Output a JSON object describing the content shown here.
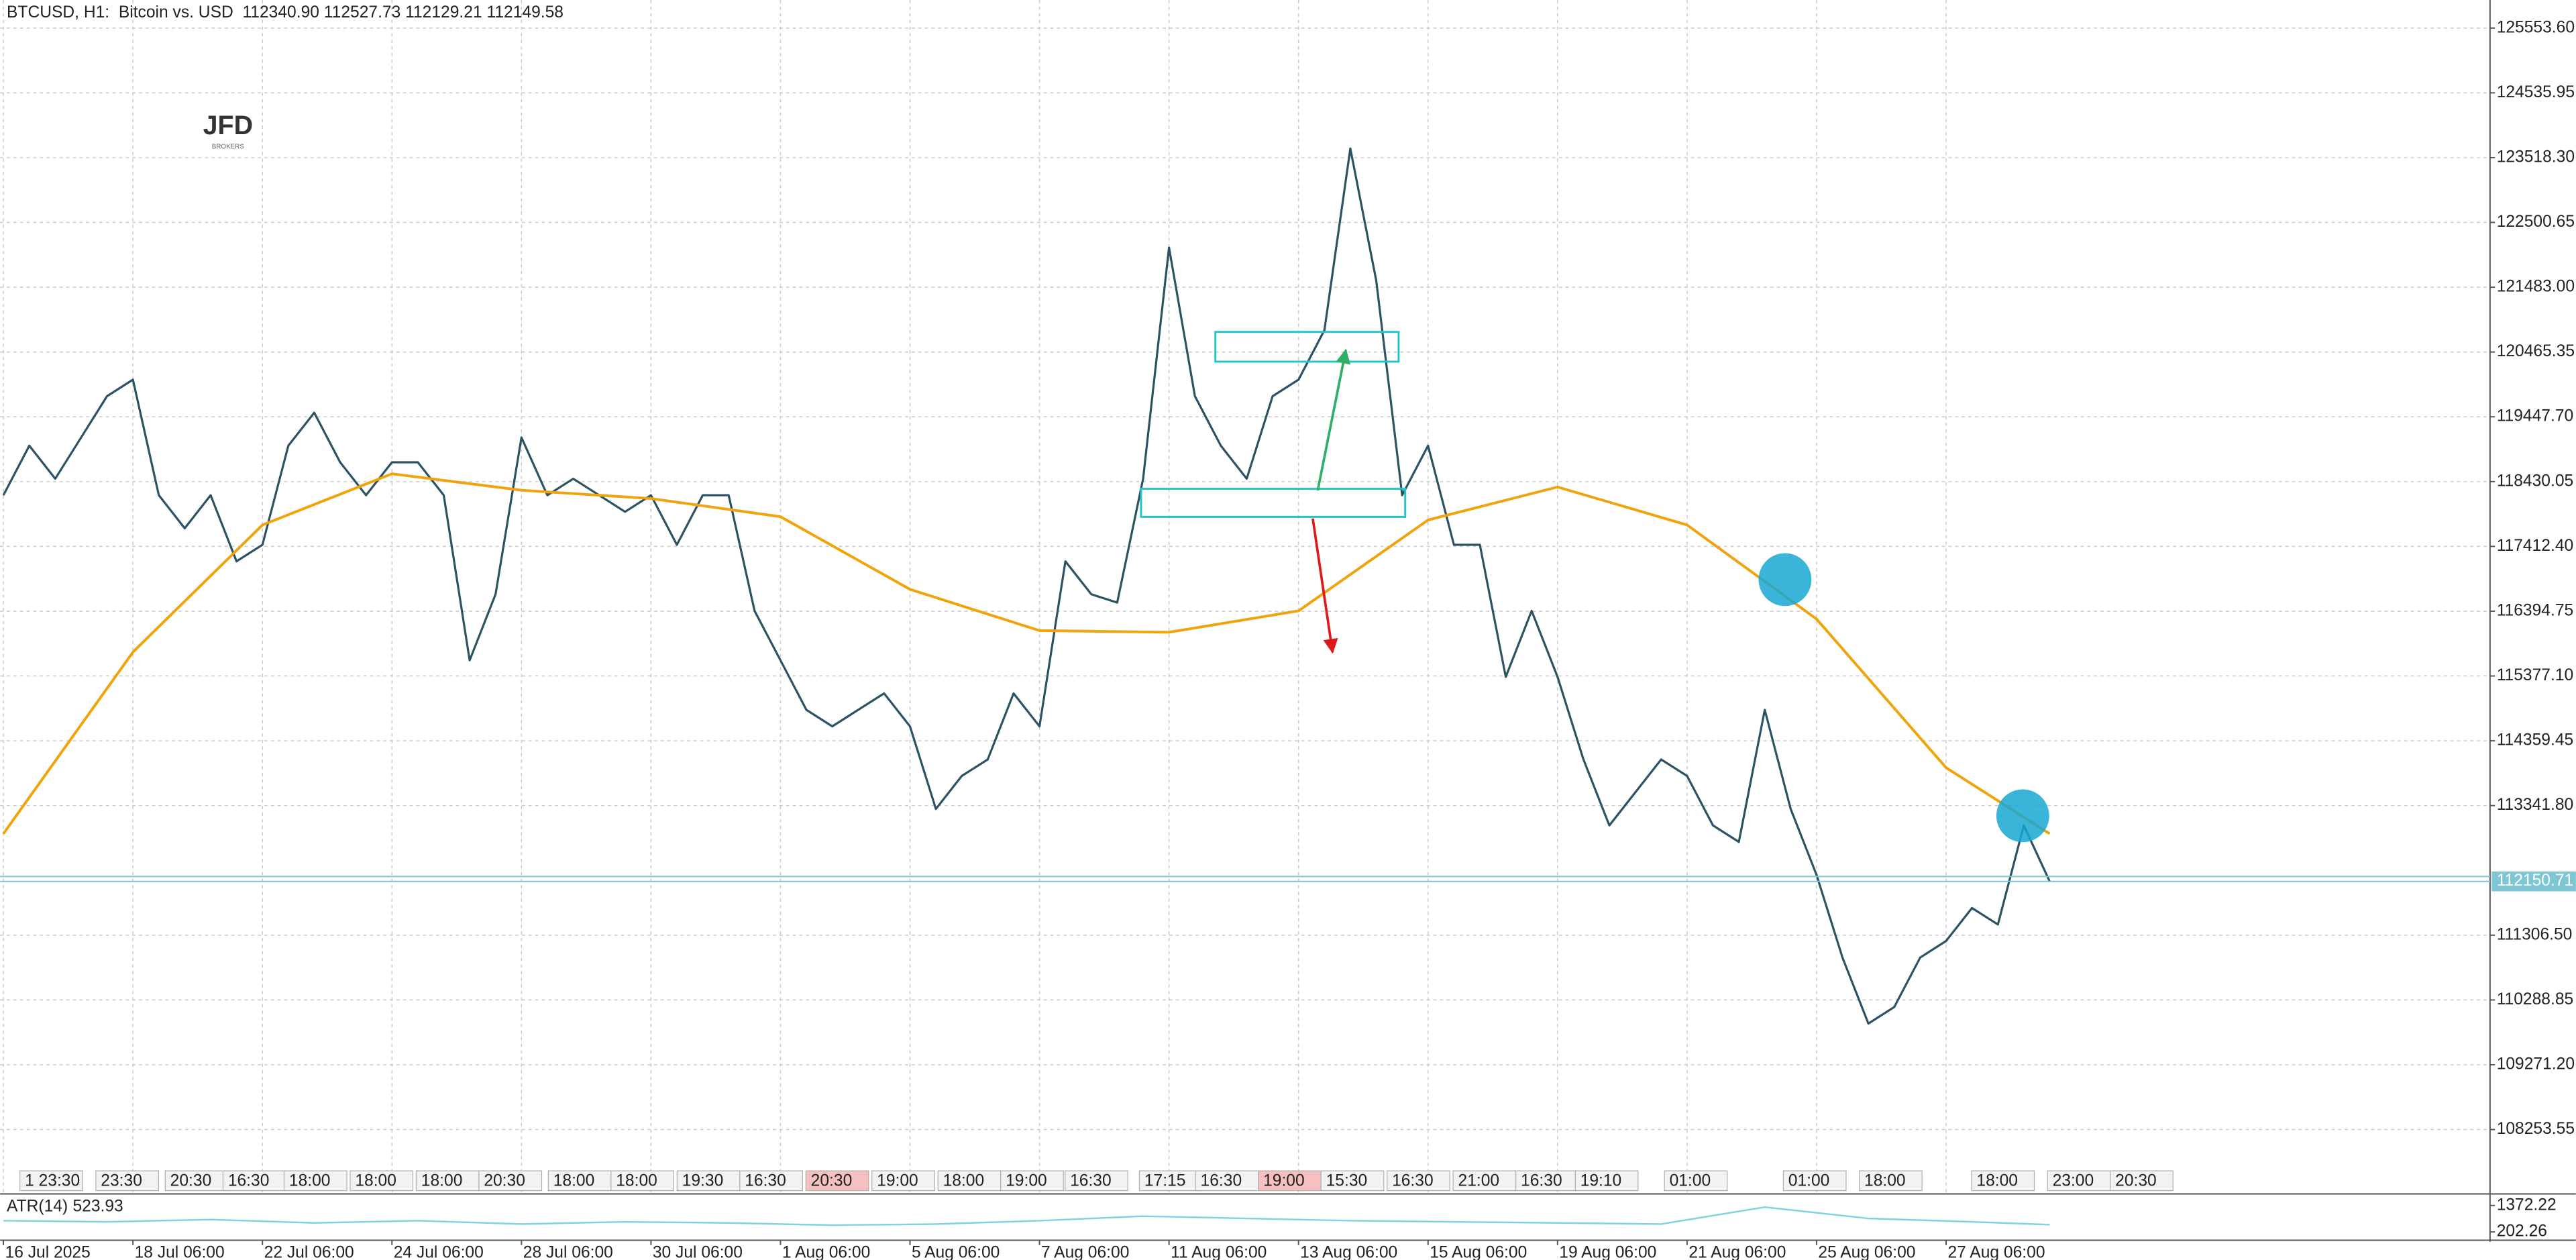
{
  "logo": {
    "name": "JFD",
    "tagline": "BROKERS"
  },
  "chart_data": [
    {
      "type": "line",
      "title": "BTCUSD, H1:  Bitcoin vs. USD  112340.90 112527.73 112129.21 112149.58",
      "xlim": [
        0,
        96
      ],
      "xticks": [
        {
          "value": 0,
          "label": "16 Jul 2025"
        },
        {
          "value": 5,
          "label": "18 Jul 06:00"
        },
        {
          "value": 10,
          "label": "22 Jul 06:00"
        },
        {
          "value": 15,
          "label": "24 Jul 06:00"
        },
        {
          "value": 20,
          "label": "28 Jul 06:00"
        },
        {
          "value": 25,
          "label": "30 Jul 06:00"
        },
        {
          "value": 30,
          "label": "1 Aug 06:00"
        },
        {
          "value": 35,
          "label": "5 Aug 06:00"
        },
        {
          "value": 40,
          "label": "7 Aug 06:00"
        },
        {
          "value": 45,
          "label": "11 Aug 06:00"
        },
        {
          "value": 50,
          "label": "13 Aug 06:00"
        },
        {
          "value": 55,
          "label": "15 Aug 06:00"
        },
        {
          "value": 60,
          "label": "19 Aug 06:00"
        },
        {
          "value": 65,
          "label": "21 Aug 06:00"
        },
        {
          "value": 70,
          "label": "25 Aug 06:00"
        },
        {
          "value": 75,
          "label": "27 Aug 06:00"
        }
      ],
      "ylim": [
        107268,
        125994
      ],
      "yticks": [
        {
          "value": 125553.6,
          "label": "125553.60"
        },
        124535.95,
        {
          "value": 123518.3,
          "label": "123518.30"
        },
        122500.65,
        {
          "value": 121483,
          "label": "121483.00"
        },
        120465.35,
        {
          "value": 119447.7,
          "label": "119447.70"
        },
        118430.05,
        {
          "value": 117412.4,
          "label": "117412.40"
        },
        116394.75,
        {
          "value": 115377.1,
          "label": "115377.10"
        },
        114359.45,
        {
          "value": 113341.8,
          "label": "113341.80"
        },
        {
          "value": 111306.5,
          "label": "111306.50"
        },
        110288.85,
        {
          "value": 109271.2,
          "label": "109271.20"
        },
        108253.55
      ],
      "grid": true,
      "current_price": 112150.71,
      "time_labels": [
        "1 23:30",
        "23:30",
        "20:30",
        "16:30",
        "18:00",
        "18:00",
        "18:00",
        "20:30",
        "18:00",
        "18:00",
        "19:30",
        "16:30",
        "20:30",
        "19:00",
        "18:00",
        "19:00",
        "16:30",
        "17:15",
        "16:30",
        "19:00",
        "15:30",
        "16:30",
        "21:00",
        "16:30",
        "19:10",
        "01:00",
        "01:00",
        "18:00",
        "18:00",
        "23:00",
        "20:30"
      ],
      "series": [
        {
          "color": "#2c5364",
          "x": [
            0,
            1,
            2,
            3,
            4,
            5,
            6,
            7,
            8,
            9,
            10,
            11,
            12,
            13,
            14,
            15,
            16,
            17,
            18,
            19,
            20,
            21,
            22,
            23,
            24,
            25,
            26,
            27,
            28,
            29,
            30,
            31,
            32,
            33,
            34,
            35,
            36,
            37,
            38,
            39,
            40,
            41,
            42,
            43,
            44,
            45,
            46,
            47,
            48,
            49,
            50,
            51,
            52,
            53,
            54,
            55,
            56,
            57,
            58,
            59,
            60,
            61,
            62,
            63,
            64,
            65,
            66,
            67,
            68,
            69,
            70,
            71,
            72,
            73,
            74,
            75,
            76,
            77,
            78,
            79
          ],
          "values": [
            118216,
            118994,
            118475,
            119123,
            119772,
            120031,
            118216,
            117697,
            118216,
            117178,
            117438,
            118994,
            119512,
            118734,
            118216,
            118734,
            118734,
            118216,
            115623,
            116660,
            119123,
            118216,
            118475,
            118216,
            117956,
            118216,
            117438,
            118216,
            118216,
            116400,
            115623,
            114845,
            114586,
            114845,
            115104,
            114586,
            113289,
            113807,
            114066,
            115104,
            114586,
            117178,
            116660,
            116530,
            118475,
            122105,
            119772,
            118994,
            118475,
            119772,
            120031,
            120809,
            123661,
            121587,
            118216,
            118994,
            117438,
            117438,
            115363,
            116400,
            115363,
            114066,
            113030,
            113548,
            114066,
            113807,
            113030,
            112771,
            114845,
            113289,
            112252,
            110955,
            109918,
            110178,
            110955,
            111215,
            111733,
            111474,
            113030,
            112150
          ]
        },
        {
          "color": "#f0a30a",
          "x": [
            0,
            5,
            10,
            15,
            20,
            25,
            30,
            35,
            40,
            45,
            50,
            55,
            60,
            65,
            70,
            75,
            79
          ],
          "values": [
            112900,
            115752,
            117749,
            118553,
            118294,
            118164,
            117879,
            116738,
            116090,
            116064,
            116400,
            117827,
            118345,
            117749,
            116271,
            113937,
            112900
          ]
        }
      ]
    },
    {
      "type": "line",
      "title": "ATR(14)",
      "ylim": [
        -90,
        1811
      ],
      "yticks": [
        1372.22,
        202.26
      ],
      "series": [
        {
          "color": "#7fd3e0",
          "x": [
            0,
            4,
            8,
            12,
            16,
            20,
            24,
            28,
            32,
            36,
            40,
            44,
            48,
            52,
            56,
            60,
            64,
            68,
            72,
            76,
            79
          ],
          "values": [
            700,
            650,
            750,
            600,
            700,
            550,
            650,
            600,
            500,
            550,
            700,
            900,
            800,
            700,
            650,
            600,
            550,
            1300,
            800,
            650,
            523.93
          ]
        }
      ]
    }
  ]
}
